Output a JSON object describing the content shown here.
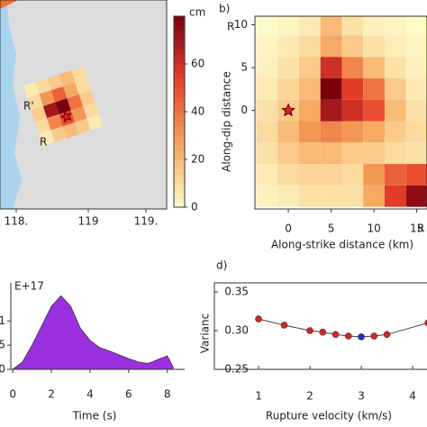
{
  "chart_data": [
    {
      "type": "map",
      "xticks": [
        {
          "value": 118,
          "label": "118."
        },
        {
          "value": 119,
          "label": "119"
        },
        {
          "value": 119.8,
          "label": "119."
        }
      ],
      "xlim": [
        117.78,
        120.1
      ],
      "labels": [
        "R'",
        "R"
      ],
      "colorbar_label": "cm",
      "cbar_lim": [
        0,
        80
      ],
      "cbar_ticks": [
        0,
        20,
        40,
        60
      ],
      "colors": [
        "#fffac8",
        "#f5a55a",
        "#e8402a",
        "#7a0010"
      ],
      "patch": [
        [
          5,
          10,
          15,
          20,
          10
        ],
        [
          10,
          30,
          45,
          25,
          10
        ],
        [
          15,
          70,
          85,
          40,
          15
        ],
        [
          10,
          35,
          50,
          30,
          10
        ],
        [
          5,
          15,
          20,
          15,
          5
        ]
      ]
    },
    {
      "type": "heatmap",
      "title": "b)",
      "labels": [
        "R",
        "R"
      ],
      "xlabel": "Along-strike distance (km)",
      "ylabel": "Along-dip distance",
      "xlim": [
        -3.9,
        16.2
      ],
      "ylim": [
        -11.5,
        11
      ],
      "xticks": [
        0,
        5,
        10,
        15
      ],
      "yticks": [
        0,
        5,
        10
      ],
      "x": [
        -2.5,
        0,
        2.5,
        5,
        7.5,
        10,
        12.5,
        15
      ],
      "y": [
        10,
        7.5,
        5,
        2.5,
        0,
        -2.5,
        -5,
        -7.5,
        -10
      ],
      "cbar_lim": [
        0,
        80
      ],
      "colors": [
        "#fffac8",
        "#f5a55a",
        "#e8402a",
        "#7a0010"
      ],
      "values": [
        [
          0,
          2,
          5,
          20,
          8,
          3,
          2,
          0
        ],
        [
          2,
          5,
          10,
          25,
          15,
          8,
          4,
          2
        ],
        [
          3,
          8,
          15,
          60,
          35,
          20,
          8,
          3
        ],
        [
          5,
          12,
          20,
          85,
          55,
          40,
          15,
          5
        ],
        [
          8,
          15,
          25,
          70,
          60,
          50,
          20,
          8
        ],
        [
          10,
          20,
          30,
          35,
          30,
          25,
          15,
          10
        ],
        [
          8,
          15,
          20,
          20,
          15,
          15,
          10,
          8
        ],
        [
          5,
          10,
          12,
          12,
          10,
          30,
          45,
          50
        ],
        [
          3,
          5,
          8,
          8,
          8,
          25,
          55,
          75
        ]
      ]
    },
    {
      "type": "area",
      "title": "E+17",
      "xlabel": "Time (s)",
      "color": "#9b30e0",
      "x": [
        0,
        0.5,
        1,
        1.5,
        2,
        2.5,
        3,
        3.5,
        4,
        4.5,
        5,
        5.5,
        6,
        6.5,
        7,
        7.5,
        8,
        8.3
      ],
      "values": [
        0,
        0.15,
        0.5,
        0.9,
        1.3,
        1.52,
        1.3,
        0.85,
        0.6,
        0.45,
        0.38,
        0.3,
        0.22,
        0.15,
        0.12,
        0.2,
        0.28,
        0.05
      ],
      "xlim": [
        -0.1,
        8.9
      ],
      "ylim": [
        0,
        1.6
      ],
      "xticks": [
        0,
        2,
        4,
        6,
        8
      ],
      "yticks": [
        0,
        {
          "value": 0.5,
          "label": "5"
        },
        {
          "value": 1.0,
          "label": "1"
        }
      ]
    },
    {
      "type": "line",
      "title": "d)",
      "xlabel": "Rupture velocity (km/s)",
      "ylabel": "Varianc",
      "color": "#444444",
      "x": [
        1,
        1.5,
        2,
        2.25,
        2.5,
        2.75,
        3,
        3.25,
        3.5,
        4.3
      ],
      "values": [
        0.315,
        0.307,
        0.3,
        0.298,
        0.295,
        0.293,
        0.292,
        0.293,
        0.295,
        0.31
      ],
      "point_colors": [
        "#e02020",
        "#e02020",
        "#e02020",
        "#e02020",
        "#e02020",
        "#e02020",
        "#2030c0",
        "#e02020",
        "#e02020",
        "#e02020"
      ],
      "xlim": [
        0.14,
        4.28
      ],
      "ylim": [
        0.25,
        0.35
      ],
      "xticks": [
        1,
        2,
        3,
        4
      ],
      "yticks": [
        {
          "value": 0.25,
          "label": "0.25"
        },
        {
          "value": 0.3,
          "label": "0.30"
        },
        {
          "value": 0.35,
          "label": "0.35"
        }
      ]
    }
  ]
}
